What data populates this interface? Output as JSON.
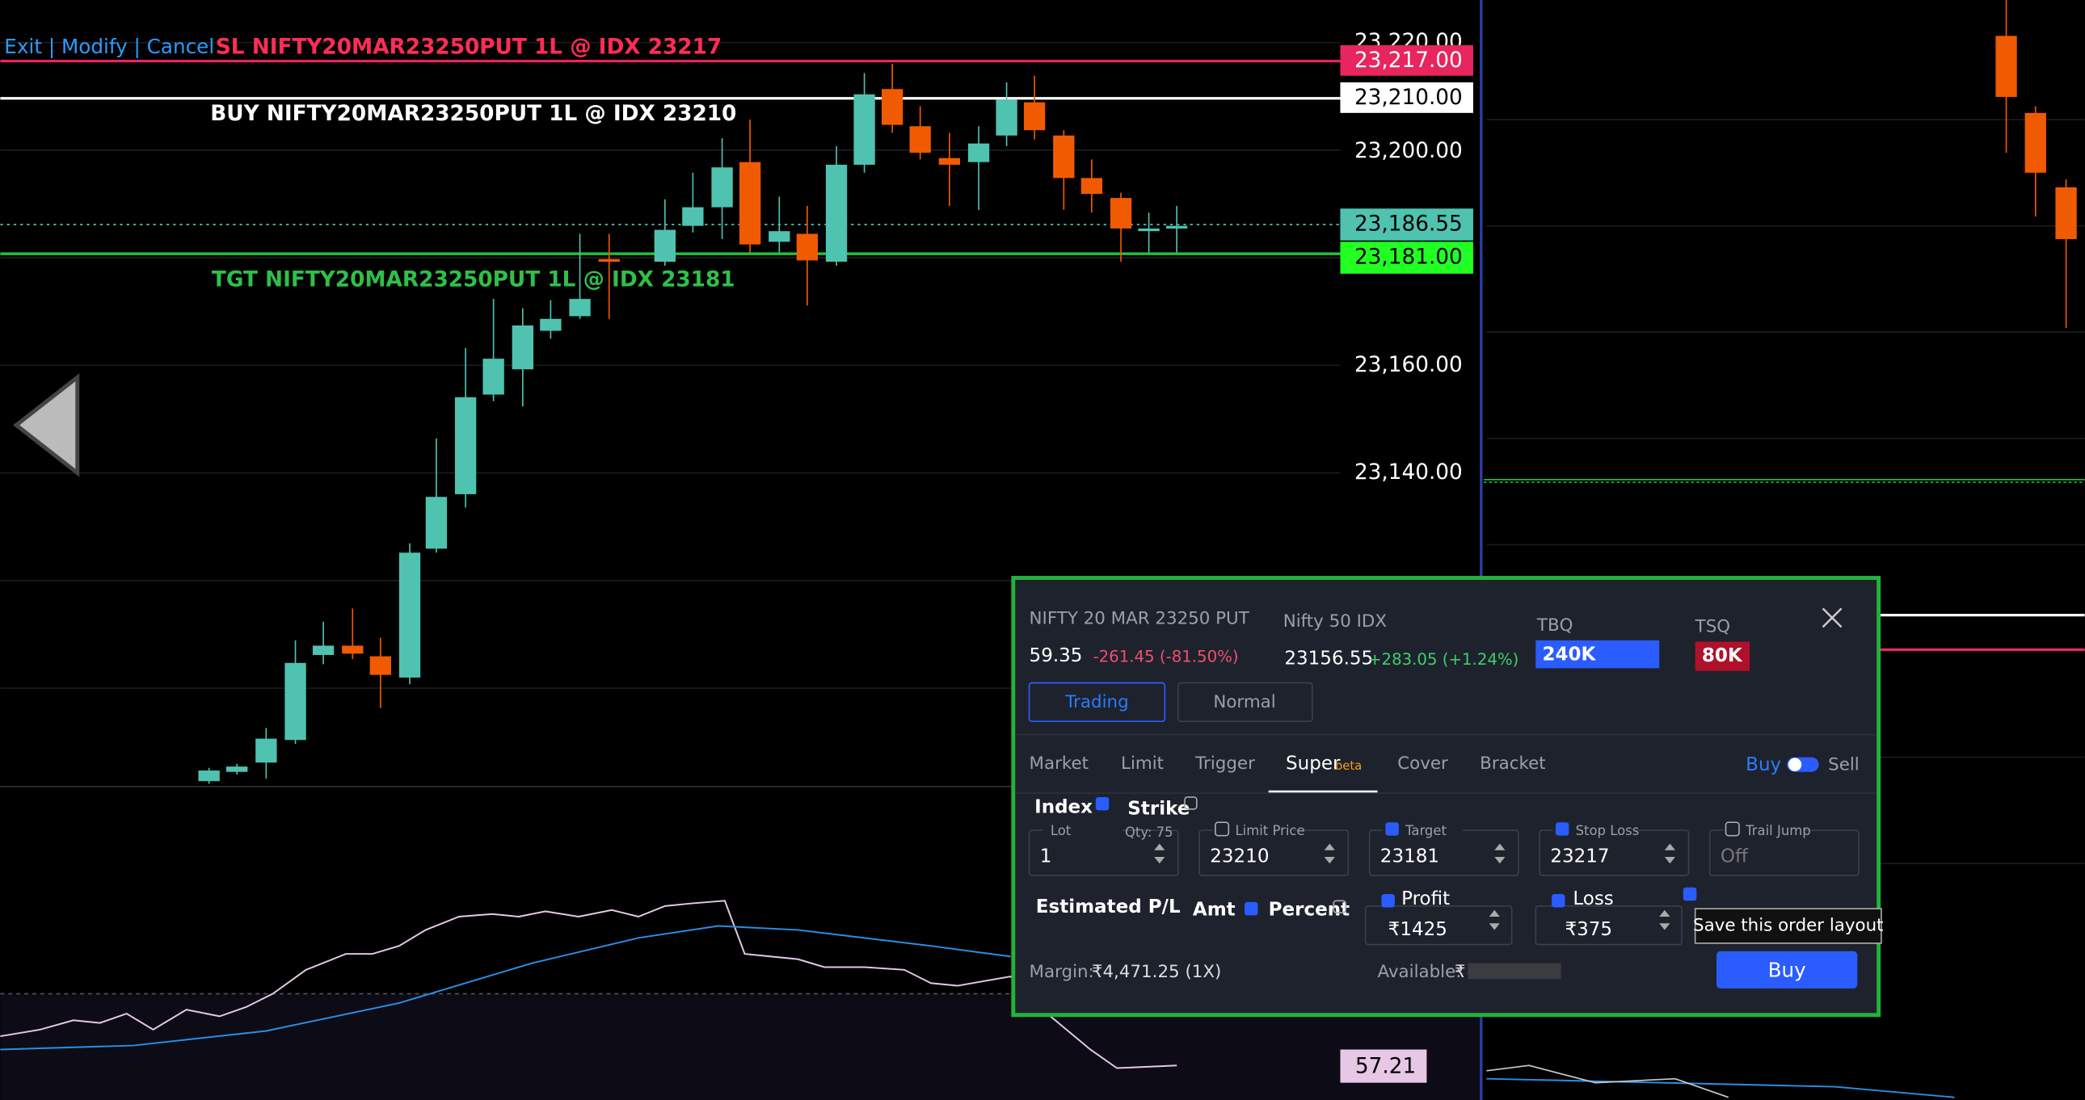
{
  "order_lines": {
    "actions": "Exit | Modify | Cancel",
    "sl": "SL NIFTY20MAR23250PUT 1L @ IDX 23217",
    "buy": "BUY NIFTY20MAR23250PUT 1L @ IDX 23210",
    "tgt": "TGT NIFTY20MAR23250PUT 1L @ IDX 23181"
  },
  "price_axis": {
    "labels": [
      "23,220.00",
      "23,200.00",
      "23,160.00",
      "23,140.00"
    ],
    "tags": [
      "23,217.00",
      "23,210.00",
      "23,186.55",
      "23,181.00"
    ],
    "indicator_tag": "57.21"
  },
  "order_panel": {
    "instrument": "NIFTY 20 MAR 23250 PUT",
    "ltp": "59.35",
    "change": "-261.45 (-81.50%)",
    "index_name": "Nifty 50 IDX",
    "index_value": "23156.55",
    "index_change": "+283.05 (+1.24%)",
    "tbq_label": "TBQ",
    "tbq": "240K",
    "tsq_label": "TSQ",
    "tsq": "80K",
    "product_tabs": [
      "Trading",
      "Normal"
    ],
    "order_types": [
      "Market",
      "Limit",
      "Trigger",
      "Super",
      "Cover",
      "Bracket"
    ],
    "beta": "beta",
    "side_buy": "Buy",
    "side_sell": "Sell",
    "index_label": "Index",
    "strike_label": "Strike",
    "fields": [
      {
        "label": "Lot",
        "value": "1",
        "extra": "Qty: 75"
      },
      {
        "label": "Limit Price",
        "value": "23210"
      },
      {
        "label": "Target",
        "value": "23181"
      },
      {
        "label": "Stop Loss",
        "value": "23217"
      },
      {
        "label": "Trail Jump",
        "value": "Off"
      }
    ],
    "pl_label": "Estimated P/L",
    "amt": "Amt",
    "percent": "Percent",
    "profit_label": "Profit",
    "profit": "₹1425",
    "loss_label": "Loss",
    "loss": "₹375",
    "tooltip": "Save this order layout",
    "margin_label": "Margin:",
    "margin": "₹4,471.25 (1X)",
    "available_label": "Available:",
    "available": "₹",
    "buy_button": "Buy"
  }
}
